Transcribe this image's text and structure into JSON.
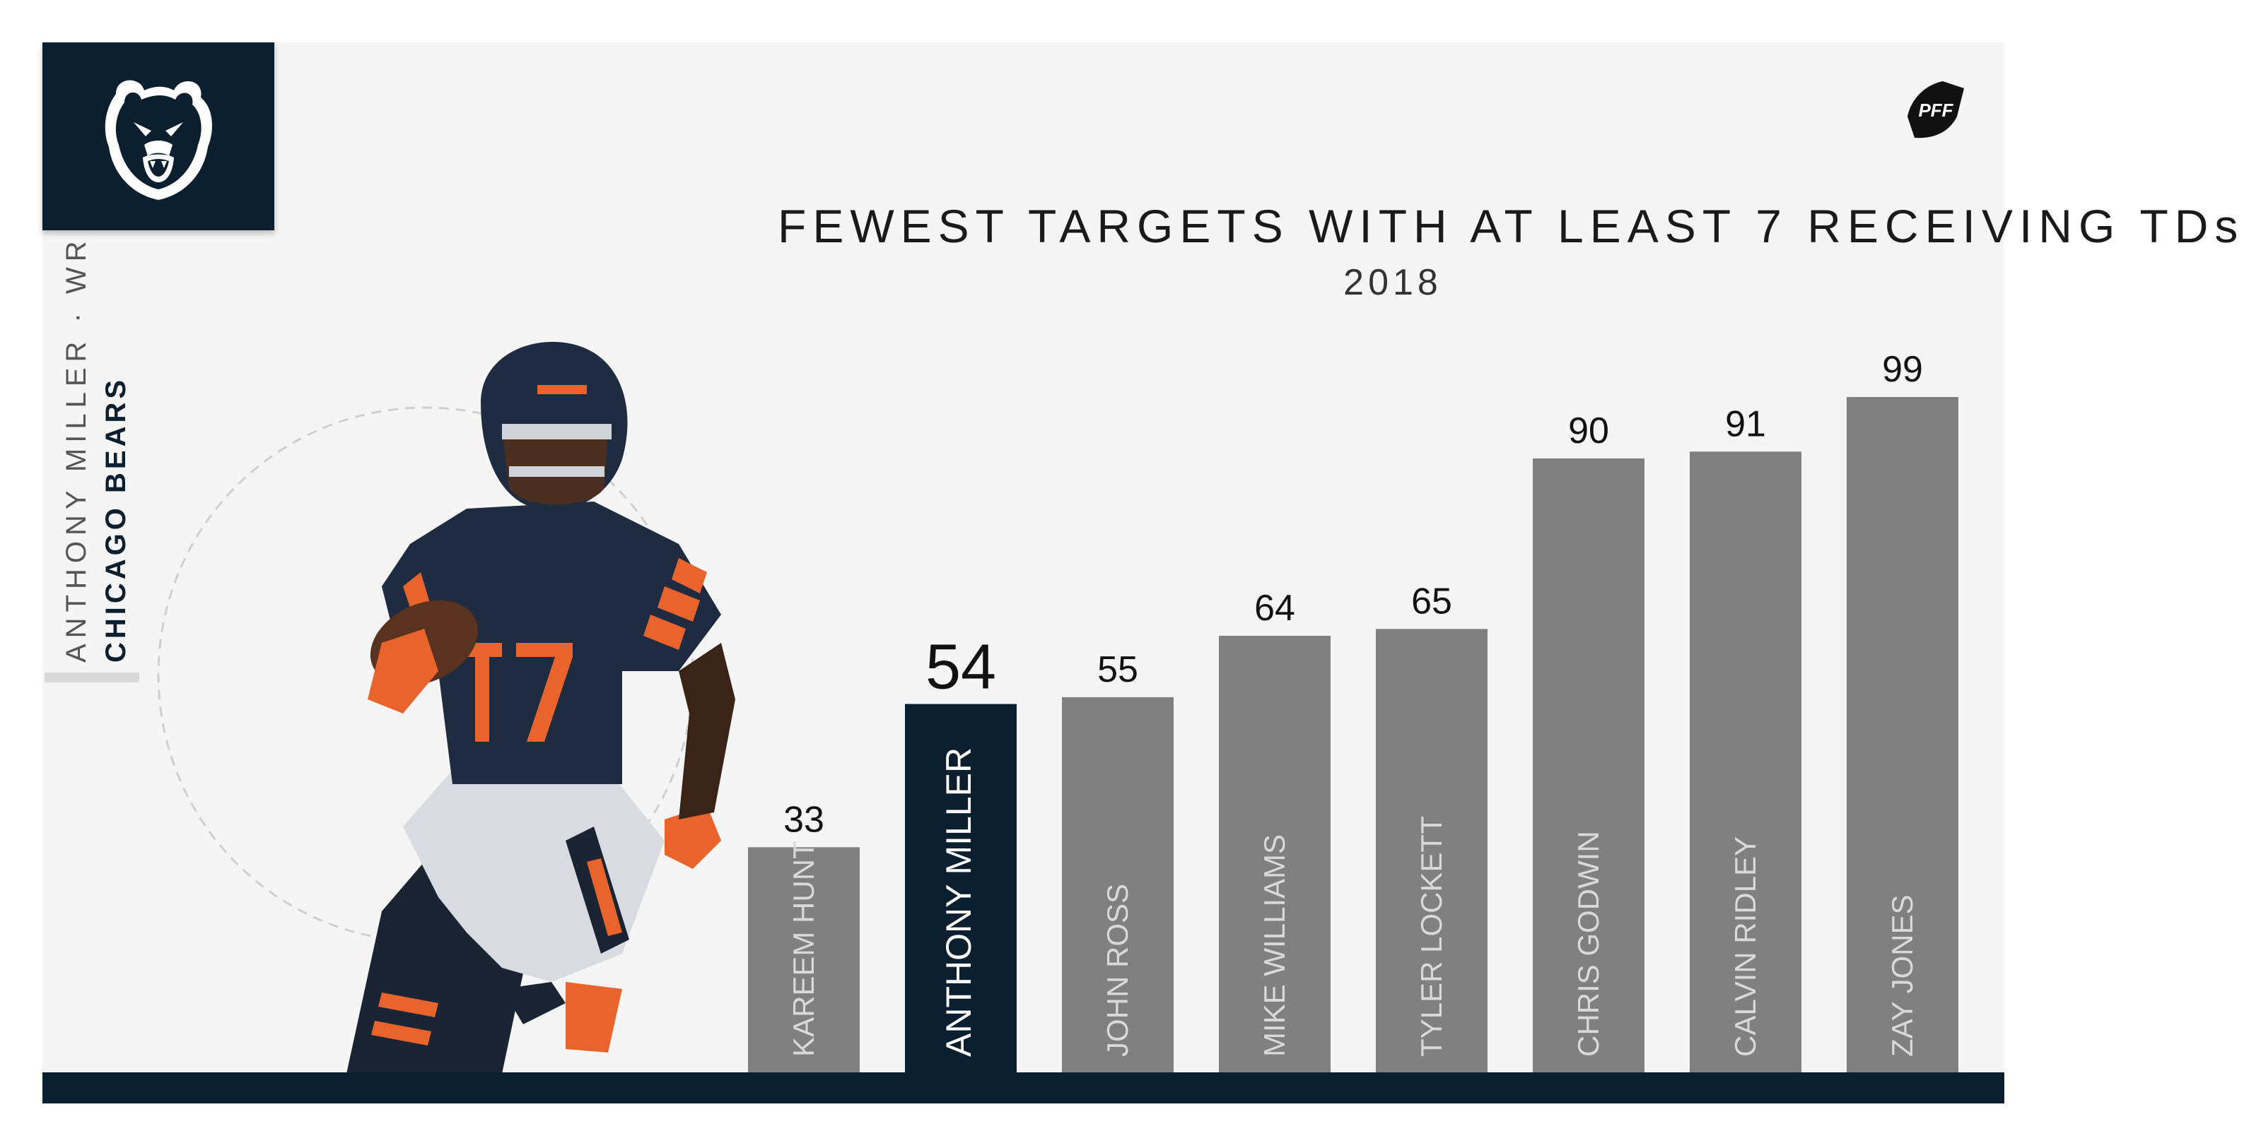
{
  "team": {
    "logo_name": "chicago-bears-logo",
    "brand_color": "#0c1f2f"
  },
  "player": {
    "name_position": "ANTHONY MILLER · WR",
    "team_name": "CHICAGO BEARS"
  },
  "pff_logo": {
    "text": "PFF"
  },
  "colors": {
    "bar": "#808080",
    "highlight": "#0c1f2f",
    "accent_orange": "#e8642c",
    "background": "#f5f5f5"
  },
  "chart_data": {
    "type": "bar",
    "title": "FEWEST TARGETS WITH AT LEAST 7 RECEIVING TDs",
    "subtitle": "2018",
    "categories": [
      "KAREEM HUNT",
      "ANTHONY MILLER",
      "JOHN ROSS",
      "MIKE WILLIAMS",
      "TYLER LOCKETT",
      "CHRIS GODWIN",
      "CALVIN RIDLEY",
      "ZAY JONES"
    ],
    "values": [
      33,
      54,
      55,
      64,
      65,
      90,
      91,
      99
    ],
    "highlight": "ANTHONY MILLER",
    "data_labels": true,
    "grid": false,
    "ylim": [
      0,
      99
    ],
    "xlabel": "",
    "ylabel": ""
  }
}
